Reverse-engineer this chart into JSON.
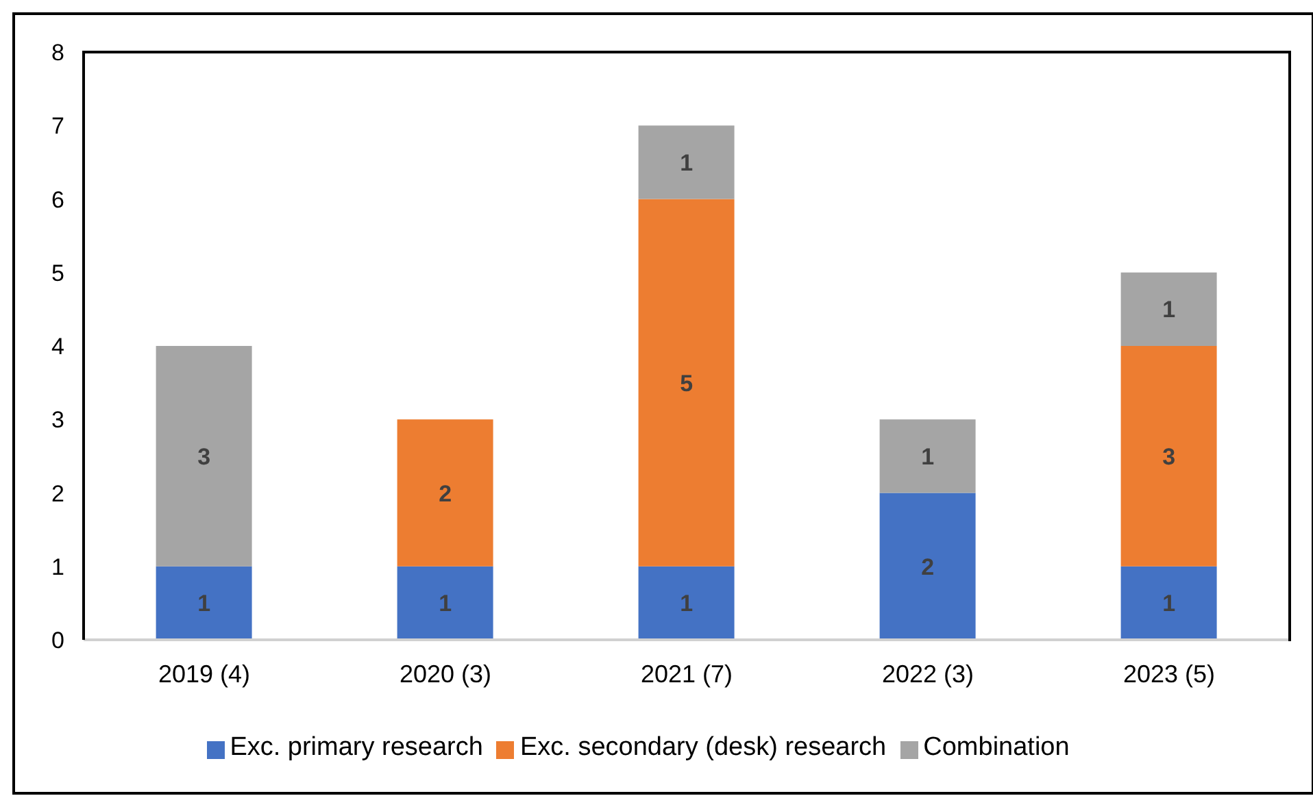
{
  "chart_data": {
    "type": "bar",
    "stacked": true,
    "categories": [
      "2019 (4)",
      "2020 (3)",
      "2021 (7)",
      "2022 (3)",
      "2023 (5)"
    ],
    "series": [
      {
        "name": "Exc. primary research",
        "color": "#4472c4",
        "values": [
          1,
          1,
          1,
          2,
          1
        ]
      },
      {
        "name": "Exc. secondary (desk) research",
        "color": "#ed7d31",
        "values": [
          null,
          2,
          5,
          null,
          3
        ]
      },
      {
        "name": "Combination",
        "color": "#a5a5a5",
        "values": [
          3,
          null,
          1,
          1,
          1
        ]
      }
    ],
    "ylim": [
      0,
      8
    ],
    "yticks": [
      0,
      1,
      2,
      3,
      4,
      5,
      6,
      7,
      8
    ],
    "data_labels": true,
    "legend": "bottom"
  }
}
